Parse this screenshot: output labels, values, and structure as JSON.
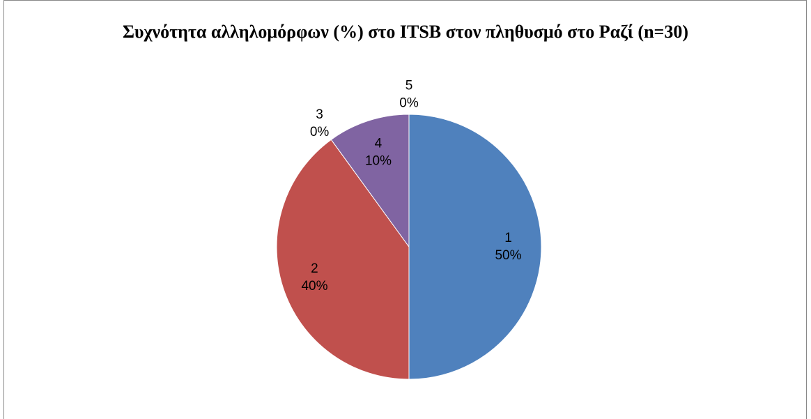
{
  "chart_data": {
    "type": "pie",
    "title": "Συχνότητα αλληλομόρφων (%) στο ITSB στον πληθυσμό στο Ραζί (n=30)",
    "categories": [
      "1",
      "2",
      "3",
      "4",
      "5"
    ],
    "values": [
      50,
      40,
      0,
      10,
      0
    ],
    "value_labels": [
      "50%",
      "40%",
      "0%",
      "10%",
      "0%"
    ],
    "colors": [
      "#4F81BD",
      "#C0504D",
      "#9BBB59",
      "#8064A2",
      "#4BACC6"
    ]
  }
}
